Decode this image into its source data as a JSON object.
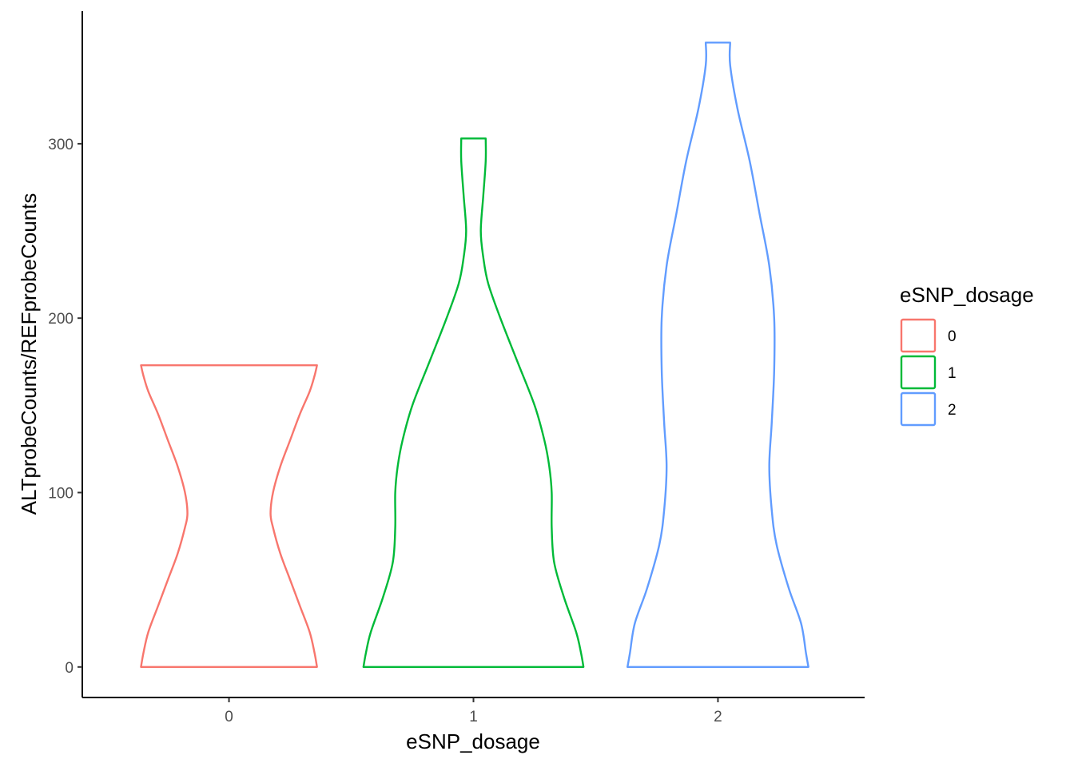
{
  "chart_data": {
    "type": "violin",
    "xlabel": "eSNP_dosage",
    "ylabel": "ALTprobeCounts/REFprobeCounts",
    "categories": [
      "0",
      "1",
      "2"
    ],
    "ylim": [
      -17.5,
      376
    ],
    "yticks": [
      0,
      100,
      200,
      300
    ],
    "ytick_labels": [
      "0",
      "100",
      "200",
      "300"
    ],
    "grid": false,
    "legend": {
      "title": "eSNP_dosage",
      "position": "right",
      "entries": [
        "0",
        "1",
        "2"
      ]
    },
    "colors": [
      "#F8766D",
      "#00BA38",
      "#619CFF"
    ],
    "series": [
      {
        "category": "0",
        "y_min": 0,
        "y_max": 173,
        "half_width_profile": [
          [
            0,
            0.36
          ],
          [
            8,
            0.35
          ],
          [
            20,
            0.33
          ],
          [
            35,
            0.29
          ],
          [
            50,
            0.25
          ],
          [
            65,
            0.21
          ],
          [
            80,
            0.18
          ],
          [
            88,
            0.17
          ],
          [
            100,
            0.18
          ],
          [
            115,
            0.21
          ],
          [
            130,
            0.25
          ],
          [
            145,
            0.29
          ],
          [
            158,
            0.33
          ],
          [
            167,
            0.35
          ],
          [
            173,
            0.36
          ]
        ]
      },
      {
        "category": "1",
        "y_min": 0,
        "y_max": 303,
        "half_width_profile": [
          [
            0,
            0.45
          ],
          [
            8,
            0.44
          ],
          [
            20,
            0.42
          ],
          [
            40,
            0.37
          ],
          [
            60,
            0.33
          ],
          [
            80,
            0.32
          ],
          [
            100,
            0.32
          ],
          [
            115,
            0.31
          ],
          [
            130,
            0.29
          ],
          [
            150,
            0.25
          ],
          [
            175,
            0.18
          ],
          [
            200,
            0.11
          ],
          [
            220,
            0.06
          ],
          [
            235,
            0.04
          ],
          [
            250,
            0.03
          ],
          [
            270,
            0.04
          ],
          [
            290,
            0.05
          ],
          [
            303,
            0.05
          ]
        ]
      },
      {
        "category": "2",
        "y_min": 0,
        "y_max": 358,
        "half_width_profile": [
          [
            0,
            0.37
          ],
          [
            8,
            0.36
          ],
          [
            25,
            0.34
          ],
          [
            45,
            0.29
          ],
          [
            70,
            0.24
          ],
          [
            90,
            0.22
          ],
          [
            115,
            0.21
          ],
          [
            140,
            0.22
          ],
          [
            170,
            0.23
          ],
          [
            200,
            0.23
          ],
          [
            230,
            0.21
          ],
          [
            260,
            0.17
          ],
          [
            290,
            0.13
          ],
          [
            320,
            0.08
          ],
          [
            345,
            0.05
          ],
          [
            358,
            0.05
          ]
        ]
      }
    ]
  }
}
